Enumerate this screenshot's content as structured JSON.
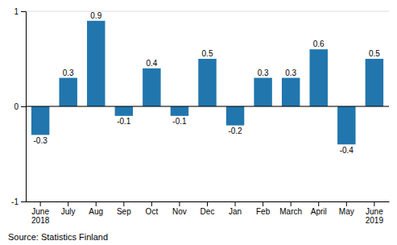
{
  "chart_data": {
    "type": "bar",
    "categories": [
      "June\n2018",
      "July",
      "Aug",
      "Sep",
      "Oct",
      "Nov",
      "Dec",
      "Jan",
      "Feb",
      "March",
      "April",
      "May",
      "June\n2019"
    ],
    "values": [
      -0.3,
      0.3,
      0.9,
      -0.1,
      0.4,
      -0.1,
      0.5,
      -0.2,
      0.3,
      0.3,
      0.6,
      -0.4,
      0.5
    ],
    "color": "#2176ae",
    "ylim": [
      -1.0,
      1.0
    ],
    "yticks": [
      -1,
      0,
      1
    ],
    "grid": true,
    "data_labels": true,
    "annotations": [
      "Source: Statistics Finland"
    ]
  }
}
